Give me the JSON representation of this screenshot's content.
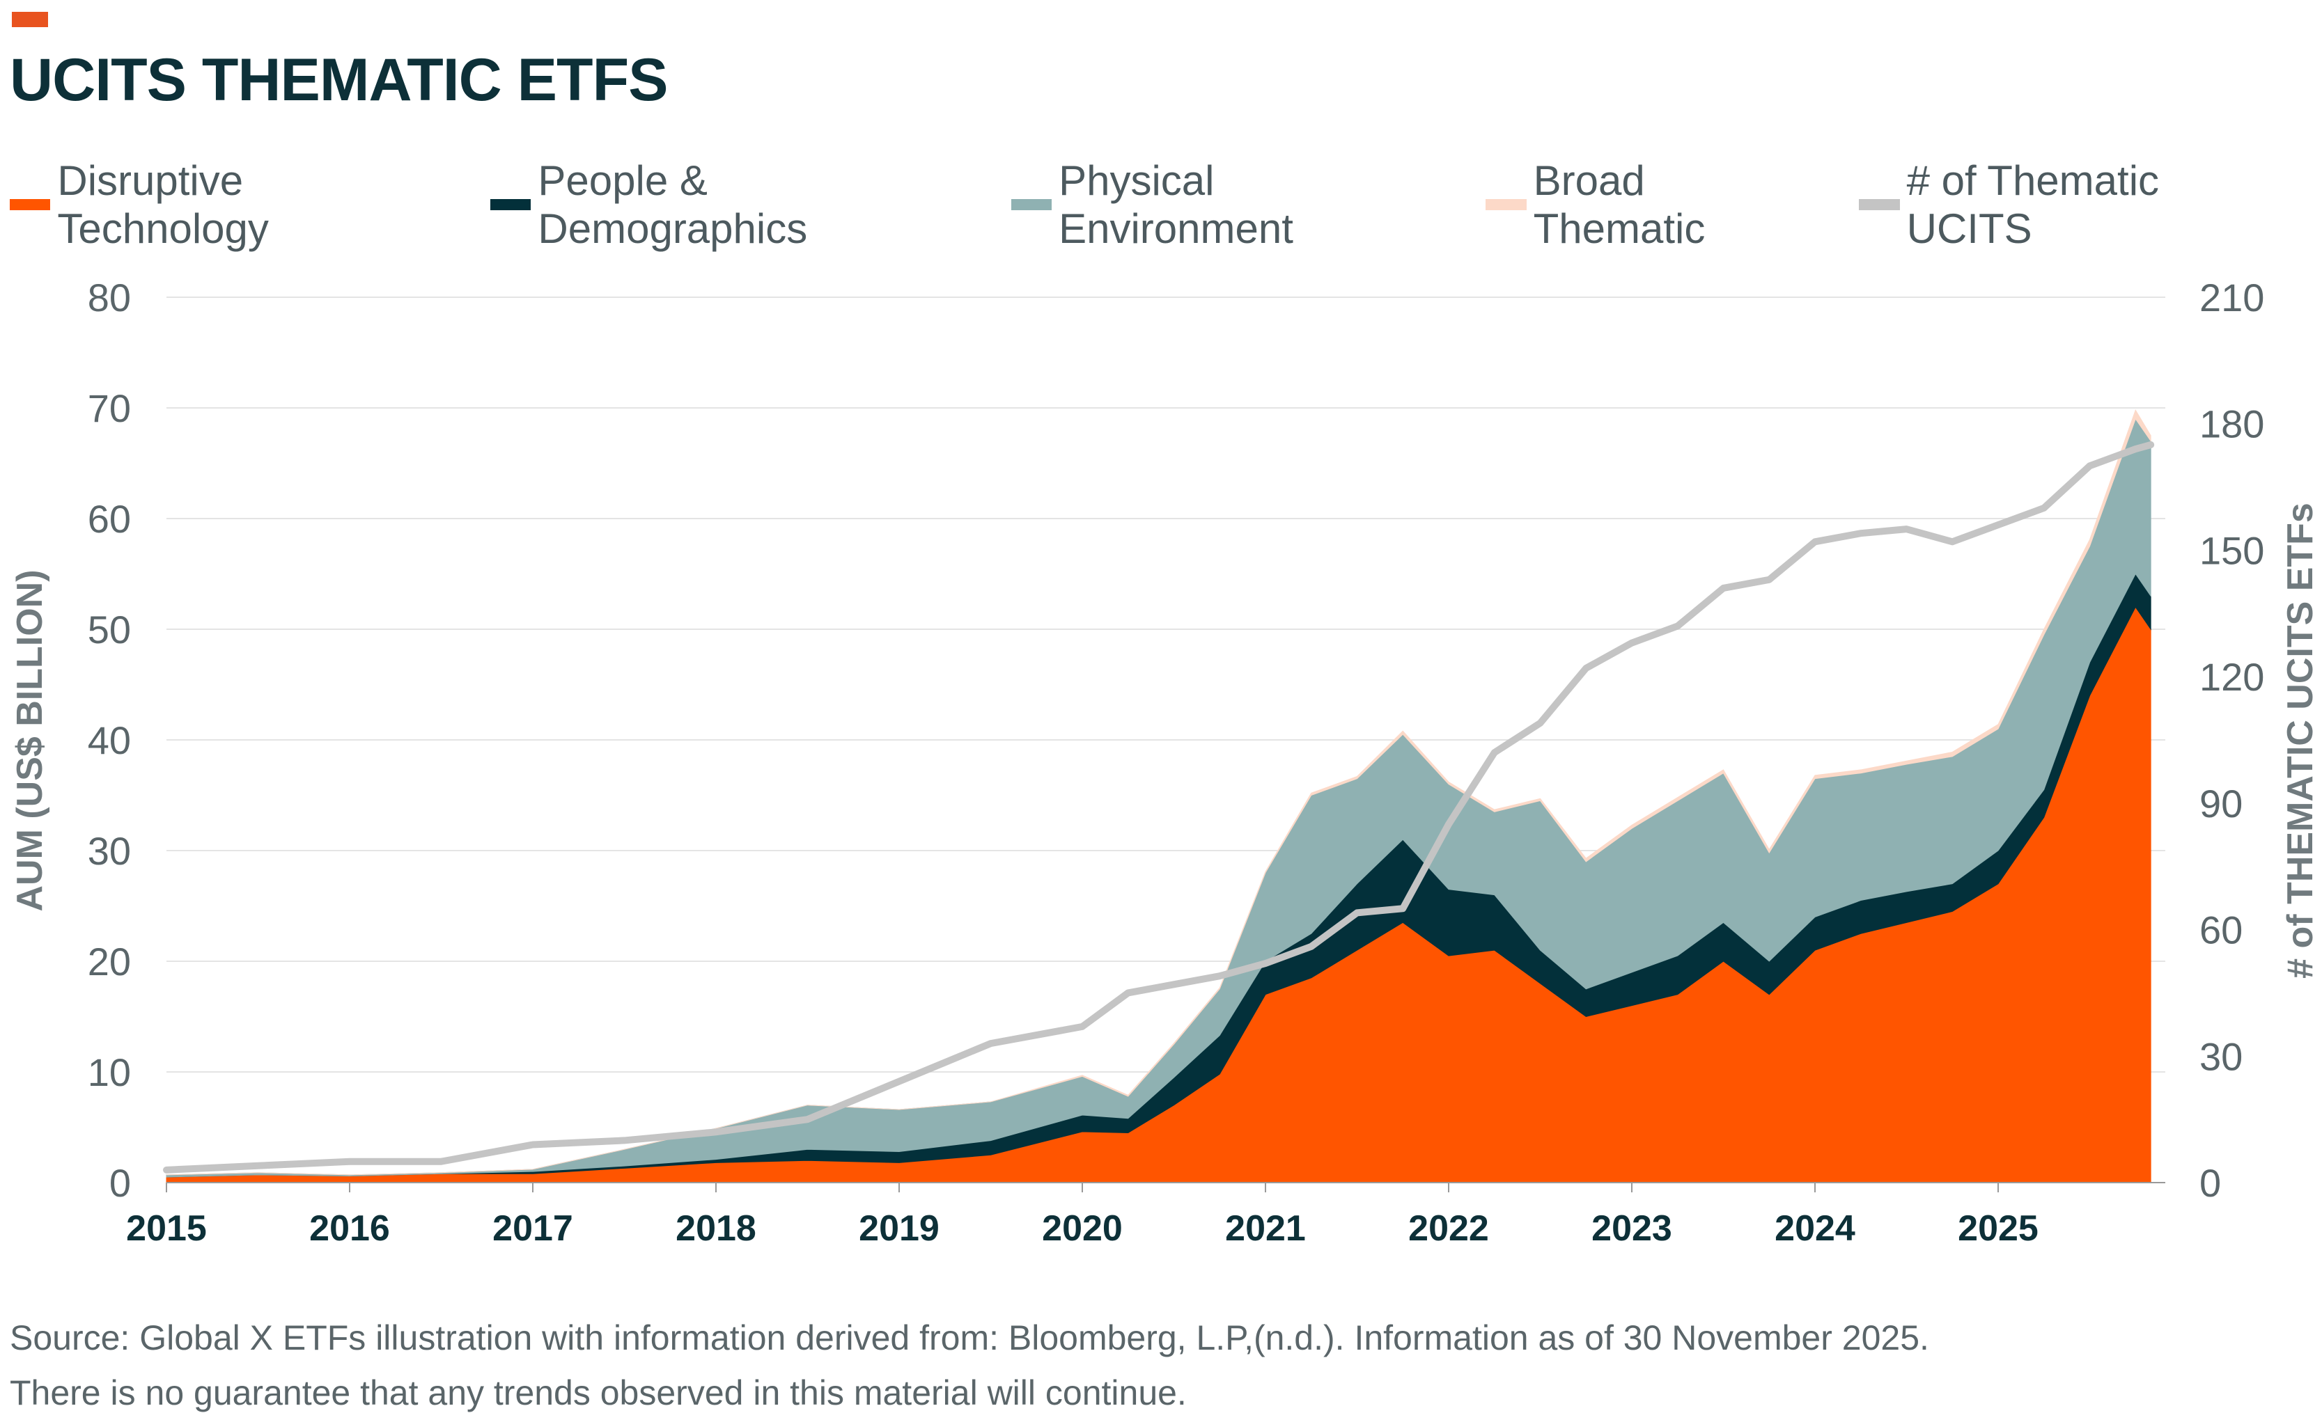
{
  "header": {
    "title": "UCITS THEMATIC ETFS",
    "accent": "#e8531f"
  },
  "footer": {
    "source": "Source: Global X ETFs illustration with information derived from: Bloomberg, L.P,(n.d.). Information as of 30 November 2025.",
    "disclaimer": "There is no guarantee that any trends observed in this material will continue."
  },
  "chart_data": {
    "type": "area",
    "stacked": true,
    "title": "UCITS THEMATIC ETFS",
    "ylabel": "AUM (US$ BILLION)",
    "y2label": "# of THEMATIC UCITS ETFs",
    "ylim": [
      0,
      80
    ],
    "y2lim": [
      0,
      210
    ],
    "yticks": [
      0,
      10,
      20,
      30,
      40,
      50,
      60,
      70,
      80
    ],
    "y2ticks": [
      0,
      30,
      60,
      90,
      120,
      150,
      180,
      210
    ],
    "xticks": [
      "2015",
      "2016",
      "2017",
      "2018",
      "2019",
      "2020",
      "2021",
      "2022",
      "2023",
      "2024",
      "2025"
    ],
    "grid": true,
    "legend": "top",
    "x": [
      "2015-01",
      "2015-07",
      "2016-01",
      "2016-07",
      "2017-01",
      "2017-07",
      "2018-01",
      "2018-07",
      "2019-01",
      "2019-07",
      "2020-01",
      "2020-04",
      "2020-07",
      "2020-10",
      "2021-01",
      "2021-04",
      "2021-07",
      "2021-10",
      "2022-01",
      "2022-04",
      "2022-07",
      "2022-10",
      "2023-01",
      "2023-04",
      "2023-07",
      "2023-10",
      "2024-01",
      "2024-04",
      "2024-07",
      "2024-10",
      "2025-01",
      "2025-04",
      "2025-07",
      "2025-10",
      "2025-11"
    ],
    "series": [
      {
        "name": "Disruptive Technology",
        "color": "#ff5500",
        "values": [
          0.5,
          0.7,
          0.6,
          0.8,
          0.8,
          1.3,
          1.8,
          2.0,
          1.8,
          2.5,
          4.6,
          4.5,
          7.0,
          9.8,
          17,
          18.5,
          21,
          23.5,
          20.5,
          21,
          18,
          15,
          16,
          17,
          20,
          17,
          21,
          22.5,
          23.5,
          24.5,
          27,
          33,
          44,
          52,
          50
        ]
      },
      {
        "name": "People & Demographics",
        "color": "#03303a",
        "values": [
          0,
          0,
          0,
          0,
          0.2,
          0.2,
          0.3,
          1.0,
          1.0,
          1.3,
          1.5,
          1.3,
          2.5,
          3.5,
          3,
          4,
          6,
          7.5,
          6,
          5,
          3,
          2.5,
          3,
          3.5,
          3.5,
          3,
          3,
          3,
          2.8,
          2.5,
          3,
          2.5,
          3,
          3,
          3
        ]
      },
      {
        "name": "Physical Environment",
        "color": "#8fb1b2",
        "values": [
          0.2,
          0.2,
          0.1,
          0.1,
          0.2,
          1.5,
          2.8,
          4.0,
          3.8,
          3.5,
          3.5,
          2.0,
          3.0,
          4.2,
          8,
          12.5,
          9.5,
          9.5,
          9.5,
          7.5,
          13.5,
          11.5,
          13,
          14,
          13.5,
          9.8,
          12.5,
          11.5,
          11.5,
          11.5,
          11,
          14,
          10.5,
          14,
          14
        ]
      },
      {
        "name": "Broad Thematic",
        "color": "#fcd9c8",
        "values": [
          0,
          0,
          0,
          0,
          0,
          0,
          0,
          0,
          0,
          0,
          0.1,
          0.1,
          0.1,
          0.1,
          0.1,
          0.2,
          0.2,
          0.3,
          0.2,
          0.2,
          0.2,
          0.3,
          0.3,
          0.3,
          0.3,
          0.3,
          0.3,
          0.3,
          0.3,
          0.4,
          0.4,
          0.5,
          0.6,
          0.8,
          0.5
        ]
      }
    ],
    "line": {
      "name": "# of Thematic UCITS",
      "color": "#c4c4c4",
      "axis": "right",
      "values": [
        3,
        4,
        5,
        5,
        9,
        10,
        12,
        15,
        24,
        33,
        37,
        45,
        47,
        49,
        52,
        56,
        64,
        65,
        85,
        102,
        109,
        122,
        128,
        132,
        141,
        143,
        152,
        154,
        155,
        152,
        156,
        160,
        170,
        174,
        175
      ]
    }
  }
}
